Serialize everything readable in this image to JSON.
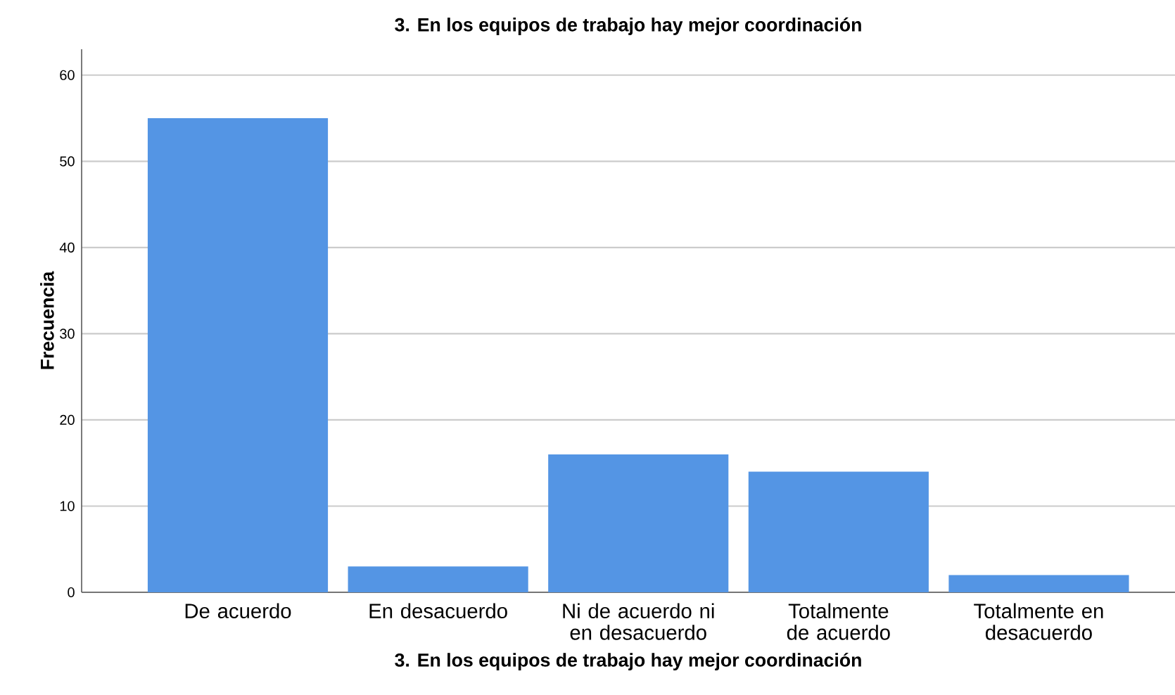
{
  "chart_data": {
    "type": "bar",
    "title": "3. En los equipos de trabajo hay mejor coordinación",
    "xlabel": "3. En los equipos de trabajo hay mejor coordinación",
    "ylabel": "Frecuencia",
    "categories": [
      "De acuerdo",
      "En desacuerdo",
      "Ni de acuerdo ni en desacuerdo",
      "Totalmente de acuerdo",
      "Totalmente en desacuerdo"
    ],
    "values": [
      55,
      3,
      16,
      14,
      2
    ],
    "color": "#5495e4",
    "ylim": [
      0,
      63
    ],
    "yticks": [
      0,
      10,
      20,
      30,
      40,
      50,
      60
    ],
    "grid": "y"
  }
}
